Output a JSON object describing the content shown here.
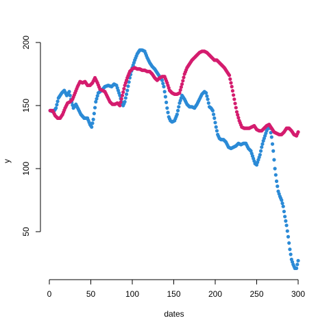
{
  "chart_data": {
    "type": "scatter",
    "title": "",
    "xlabel": "dates",
    "ylabel": "y",
    "xlim": [
      0,
      300
    ],
    "ylim": [
      20,
      200
    ],
    "x_ticks": [
      0,
      50,
      100,
      150,
      200,
      250,
      300
    ],
    "y_ticks": [
      50,
      100,
      150,
      200
    ],
    "grid": false,
    "legend": "none",
    "series": [
      {
        "color": "#2b8ad6",
        "points": [
          [
            1,
            146
          ],
          [
            5,
            145
          ],
          [
            8,
            148
          ],
          [
            11,
            156
          ],
          [
            15,
            160
          ],
          [
            18,
            162
          ],
          [
            21,
            158
          ],
          [
            24,
            161
          ],
          [
            26,
            155
          ],
          [
            29,
            148
          ],
          [
            32,
            151
          ],
          [
            35,
            147
          ],
          [
            38,
            143
          ],
          [
            42,
            140
          ],
          [
            46,
            140
          ],
          [
            49,
            135
          ],
          [
            51,
            133
          ],
          [
            53,
            139
          ],
          [
            56,
            153
          ],
          [
            59,
            160
          ],
          [
            63,
            162
          ],
          [
            67,
            165
          ],
          [
            71,
            166
          ],
          [
            75,
            165
          ],
          [
            78,
            167
          ],
          [
            81,
            166
          ],
          [
            83,
            162
          ],
          [
            85,
            158
          ],
          [
            87,
            153
          ],
          [
            89,
            150
          ],
          [
            91,
            153
          ],
          [
            94,
            162
          ],
          [
            97,
            172
          ],
          [
            100,
            180
          ],
          [
            103,
            186
          ],
          [
            106,
            191
          ],
          [
            109,
            194
          ],
          [
            112,
            194
          ],
          [
            115,
            193
          ],
          [
            118,
            188
          ],
          [
            121,
            184
          ],
          [
            124,
            181
          ],
          [
            127,
            179
          ],
          [
            130,
            176
          ],
          [
            133,
            173
          ],
          [
            136,
            170
          ],
          [
            138,
            165
          ],
          [
            140,
            157
          ],
          [
            142,
            148
          ],
          [
            144,
            141
          ],
          [
            146,
            138
          ],
          [
            148,
            137
          ],
          [
            151,
            138
          ],
          [
            154,
            143
          ],
          [
            157,
            152
          ],
          [
            160,
            158
          ],
          [
            163,
            155
          ],
          [
            166,
            151
          ],
          [
            169,
            149
          ],
          [
            172,
            149
          ],
          [
            175,
            148
          ],
          [
            178,
            151
          ],
          [
            181,
            155
          ],
          [
            184,
            159
          ],
          [
            187,
            161
          ],
          [
            189,
            160
          ],
          [
            191,
            155
          ],
          [
            193,
            149
          ],
          [
            195,
            148
          ],
          [
            197,
            146
          ],
          [
            199,
            140
          ],
          [
            201,
            133
          ],
          [
            203,
            127
          ],
          [
            205,
            124
          ],
          [
            207,
            123
          ],
          [
            210,
            123
          ],
          [
            213,
            121
          ],
          [
            216,
            117
          ],
          [
            219,
            116
          ],
          [
            222,
            117
          ],
          [
            225,
            118
          ],
          [
            228,
            120
          ],
          [
            231,
            119
          ],
          [
            234,
            120
          ],
          [
            237,
            120
          ],
          [
            240,
            116
          ],
          [
            243,
            114
          ],
          [
            246,
            108
          ],
          [
            248,
            104
          ],
          [
            250,
            103
          ],
          [
            252,
            107
          ],
          [
            254,
            111
          ],
          [
            256,
            117
          ],
          [
            258,
            122
          ],
          [
            260,
            126
          ],
          [
            262,
            130
          ],
          [
            264,
            133
          ],
          [
            266,
            132
          ],
          [
            268,
            125
          ],
          [
            270,
            114
          ],
          [
            272,
            100
          ],
          [
            274,
            90
          ],
          [
            276,
            82
          ],
          [
            278,
            78
          ],
          [
            280,
            75
          ],
          [
            282,
            70
          ],
          [
            284,
            62
          ],
          [
            286,
            55
          ],
          [
            288,
            46
          ],
          [
            290,
            36
          ],
          [
            292,
            28
          ],
          [
            294,
            24
          ],
          [
            296,
            21
          ],
          [
            298,
            21
          ],
          [
            300,
            27
          ]
        ]
      },
      {
        "color": "#d41c6e",
        "points": [
          [
            1,
            146
          ],
          [
            4,
            146
          ],
          [
            7,
            142
          ],
          [
            10,
            140
          ],
          [
            13,
            140
          ],
          [
            16,
            143
          ],
          [
            19,
            148
          ],
          [
            22,
            152
          ],
          [
            25,
            153
          ],
          [
            28,
            155
          ],
          [
            31,
            160
          ],
          [
            34,
            165
          ],
          [
            37,
            169
          ],
          [
            40,
            168
          ],
          [
            43,
            169
          ],
          [
            46,
            166
          ],
          [
            49,
            166
          ],
          [
            52,
            168
          ],
          [
            55,
            172
          ],
          [
            58,
            168
          ],
          [
            61,
            163
          ],
          [
            64,
            162
          ],
          [
            67,
            161
          ],
          [
            70,
            157
          ],
          [
            73,
            153
          ],
          [
            76,
            151
          ],
          [
            79,
            151
          ],
          [
            82,
            152
          ],
          [
            85,
            150
          ],
          [
            88,
            158
          ],
          [
            91,
            166
          ],
          [
            94,
            172
          ],
          [
            97,
            177
          ],
          [
            100,
            179
          ],
          [
            103,
            180
          ],
          [
            106,
            179
          ],
          [
            109,
            179
          ],
          [
            112,
            178
          ],
          [
            115,
            178
          ],
          [
            118,
            177
          ],
          [
            121,
            177
          ],
          [
            124,
            175
          ],
          [
            127,
            172
          ],
          [
            130,
            170
          ],
          [
            133,
            172
          ],
          [
            136,
            173
          ],
          [
            139,
            173
          ],
          [
            142,
            168
          ],
          [
            145,
            162
          ],
          [
            148,
            160
          ],
          [
            151,
            159
          ],
          [
            154,
            159
          ],
          [
            157,
            160
          ],
          [
            160,
            167
          ],
          [
            163,
            175
          ],
          [
            166,
            180
          ],
          [
            169,
            183
          ],
          [
            172,
            186
          ],
          [
            175,
            188
          ],
          [
            178,
            190
          ],
          [
            181,
            192
          ],
          [
            184,
            193
          ],
          [
            187,
            193
          ],
          [
            190,
            192
          ],
          [
            193,
            190
          ],
          [
            196,
            188
          ],
          [
            199,
            186
          ],
          [
            202,
            186
          ],
          [
            205,
            184
          ],
          [
            208,
            182
          ],
          [
            211,
            180
          ],
          [
            214,
            177
          ],
          [
            217,
            174
          ],
          [
            220,
            165
          ],
          [
            223,
            155
          ],
          [
            226,
            145
          ],
          [
            229,
            138
          ],
          [
            232,
            133
          ],
          [
            235,
            132
          ],
          [
            238,
            132
          ],
          [
            241,
            132
          ],
          [
            244,
            133
          ],
          [
            247,
            134
          ],
          [
            250,
            131
          ],
          [
            253,
            130
          ],
          [
            256,
            130
          ],
          [
            259,
            132
          ],
          [
            262,
            134
          ],
          [
            265,
            135
          ],
          [
            268,
            132
          ],
          [
            271,
            129
          ],
          [
            274,
            128
          ],
          [
            277,
            127
          ],
          [
            280,
            127
          ],
          [
            283,
            129
          ],
          [
            286,
            132
          ],
          [
            289,
            132
          ],
          [
            292,
            130
          ],
          [
            295,
            127
          ],
          [
            298,
            126
          ],
          [
            300,
            129
          ]
        ]
      }
    ]
  }
}
